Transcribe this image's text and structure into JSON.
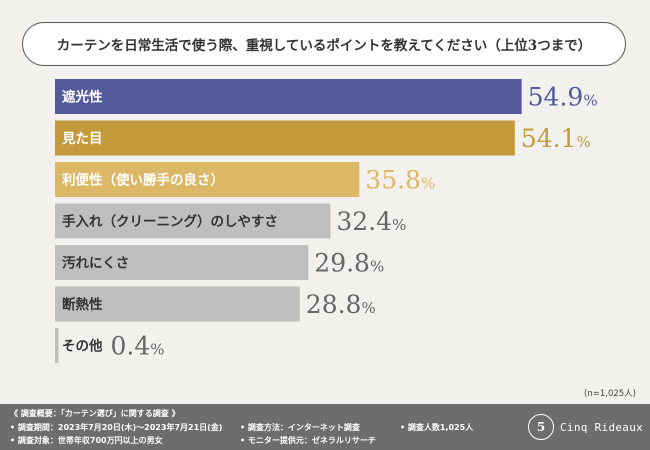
{
  "chart_data": {
    "type": "bar",
    "orientation": "horizontal",
    "title": "カーテンを日常生活で使う際、重視しているポイントを教えてください（上位3つまで）",
    "categories": [
      "遮光性",
      "見た目",
      "利便性（使い勝手の良さ）",
      "手入れ（クリーニング）のしやすさ",
      "汚れにくさ",
      "断熱性",
      "その他"
    ],
    "values": [
      54.9,
      54.1,
      35.8,
      32.4,
      29.8,
      28.8,
      0.4
    ],
    "value_labels": [
      "54.9",
      "54.1",
      "35.8",
      "32.4",
      "29.8",
      "28.8",
      "0.4"
    ],
    "unit": "%",
    "colors": [
      "#545b9b",
      "#c49a3c",
      "#dcb866",
      "#bebebe",
      "#bebebe",
      "#bebebe",
      "#bebebe"
    ],
    "label_colors": [
      "#545b9b",
      "#c49a3c",
      "#dcb866",
      "#666666",
      "#666666",
      "#666666",
      "#666666"
    ],
    "xlim": [
      0,
      55
    ],
    "grid": false,
    "legend": "none"
  },
  "sample_note": "(n=1,025人)",
  "footer": {
    "survey_title": "《 調査概要：「カーテン選び」に関する調査 》",
    "period": "• 調査期間：2023年7月20日(木)～2023年7月21日(金)",
    "target": "• 調査対象：世帯年収700万円以上の男女",
    "method": "• 調査方法：インターネット調査",
    "provider": "• モニター提供元：ゼネラルリサーチ",
    "count": "• 調査人数1,025人",
    "brand_mark": "5",
    "brand_name": "Cinq Rideaux"
  }
}
